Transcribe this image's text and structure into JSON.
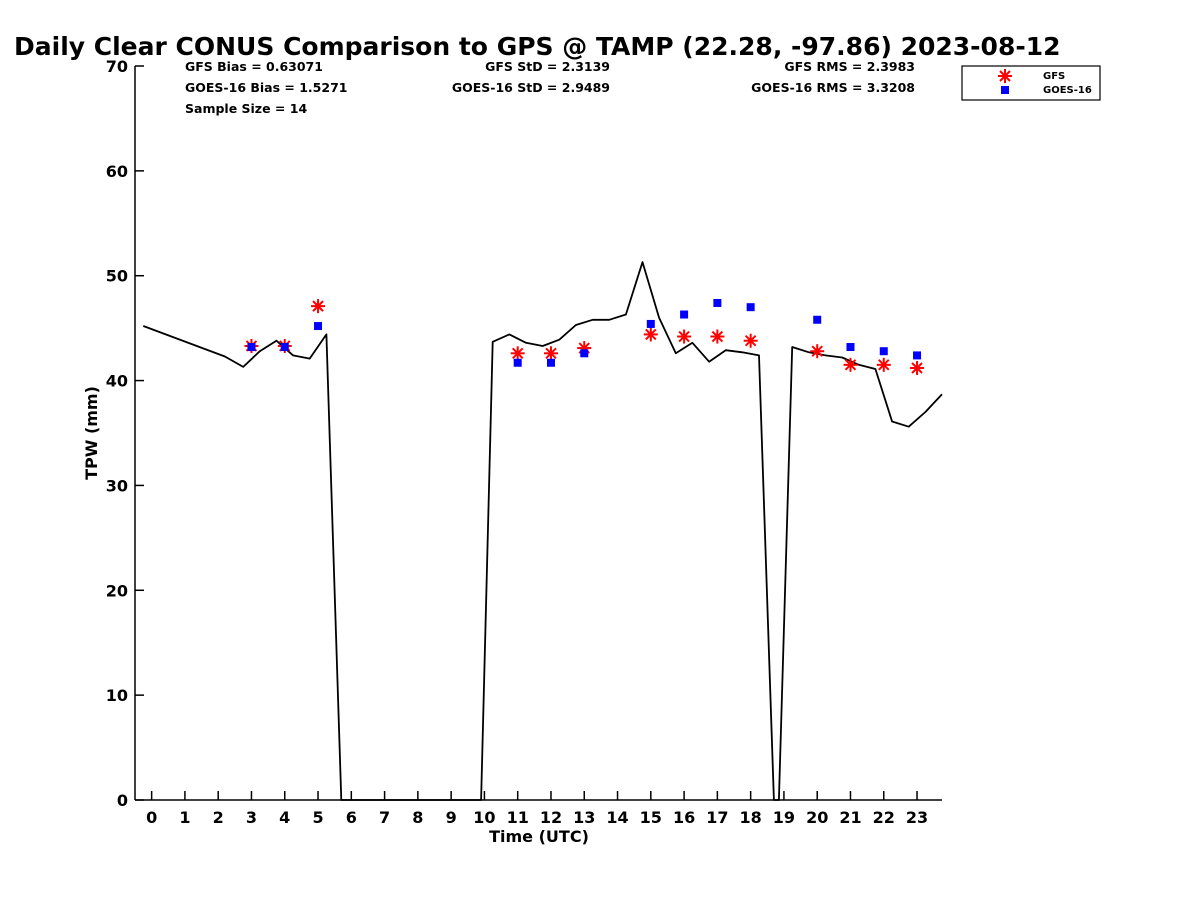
{
  "chart_data": {
    "type": "line",
    "title": "Daily Clear CONUS Comparison to GPS @ TAMP (22.28, -97.86) 2023-08-12",
    "xlabel": "Time (UTC)",
    "ylabel": "TPW (mm)",
    "xlim": [
      -0.5,
      23.75
    ],
    "ylim": [
      0,
      70
    ],
    "xticks": [
      0,
      1,
      2,
      3,
      4,
      5,
      6,
      7,
      8,
      9,
      10,
      11,
      12,
      13,
      14,
      15,
      16,
      17,
      18,
      19,
      20,
      21,
      22,
      23
    ],
    "yticks": [
      0,
      10,
      20,
      30,
      40,
      50,
      60,
      70
    ],
    "grid": false,
    "legend_position": "top-right, outside plot",
    "stats": [
      "GFS Bias = 0.63071",
      "GOES-16 Bias = 1.5271",
      "Sample Size = 14",
      "GFS StD = 2.3139",
      "GOES-16 StD = 2.9489",
      "GFS RMS = 2.3983",
      "GOES-16 RMS = 3.3208"
    ],
    "series": [
      {
        "color": "#000000",
        "style": "line",
        "points": [
          [
            -0.25,
            45.2
          ],
          [
            2.2,
            42.3
          ],
          [
            2.75,
            41.3
          ],
          [
            3.25,
            42.8
          ],
          [
            3.75,
            43.8
          ],
          [
            4.25,
            42.4
          ],
          [
            4.75,
            42.1
          ],
          [
            5.25,
            44.4
          ],
          [
            5.7,
            0
          ],
          [
            9.9,
            0
          ],
          [
            10.25,
            43.7
          ],
          [
            10.75,
            44.4
          ],
          [
            11.25,
            43.6
          ],
          [
            11.75,
            43.3
          ],
          [
            12.25,
            43.9
          ],
          [
            12.75,
            45.3
          ],
          [
            13.25,
            45.8
          ],
          [
            13.75,
            45.8
          ],
          [
            14.25,
            46.3
          ],
          [
            14.75,
            51.3
          ],
          [
            15.25,
            46
          ],
          [
            15.75,
            42.6
          ],
          [
            16.25,
            43.6
          ],
          [
            16.75,
            41.8
          ],
          [
            17.25,
            42.9
          ],
          [
            17.75,
            42.7
          ],
          [
            18.25,
            42.4
          ],
          [
            18.7,
            0
          ],
          [
            18.85,
            0
          ],
          [
            19.25,
            43.2
          ],
          [
            19.75,
            42.7
          ],
          [
            20.25,
            42.4
          ],
          [
            20.75,
            42.2
          ],
          [
            21.25,
            41.5
          ],
          [
            21.75,
            41.1
          ],
          [
            22.25,
            36.1
          ],
          [
            22.75,
            35.6
          ],
          [
            23.25,
            37
          ],
          [
            23.75,
            38.7
          ]
        ]
      },
      {
        "name": "GFS",
        "color": "#ff0000",
        "marker": "asterisk",
        "points": [
          [
            3,
            43.3
          ],
          [
            4,
            43.3
          ],
          [
            5,
            47.1
          ],
          [
            11,
            42.6
          ],
          [
            12,
            42.6
          ],
          [
            13,
            43.1
          ],
          [
            15,
            44.4
          ],
          [
            16,
            44.2
          ],
          [
            17,
            44.2
          ],
          [
            18,
            43.8
          ],
          [
            20,
            42.8
          ],
          [
            21,
            41.5
          ],
          [
            22,
            41.5
          ],
          [
            23,
            41.2
          ]
        ]
      },
      {
        "name": "GOES-16",
        "color": "#0000ff",
        "marker": "square",
        "points": [
          [
            3,
            43.2
          ],
          [
            4,
            43.2
          ],
          [
            5,
            45.2
          ],
          [
            11,
            41.7
          ],
          [
            12,
            41.7
          ],
          [
            13,
            42.6
          ],
          [
            15,
            45.4
          ],
          [
            16,
            46.3
          ],
          [
            17,
            47.4
          ],
          [
            18,
            47.0
          ],
          [
            20,
            45.8
          ],
          [
            21,
            43.2
          ],
          [
            22,
            42.8
          ],
          [
            23,
            42.4
          ]
        ]
      }
    ]
  }
}
